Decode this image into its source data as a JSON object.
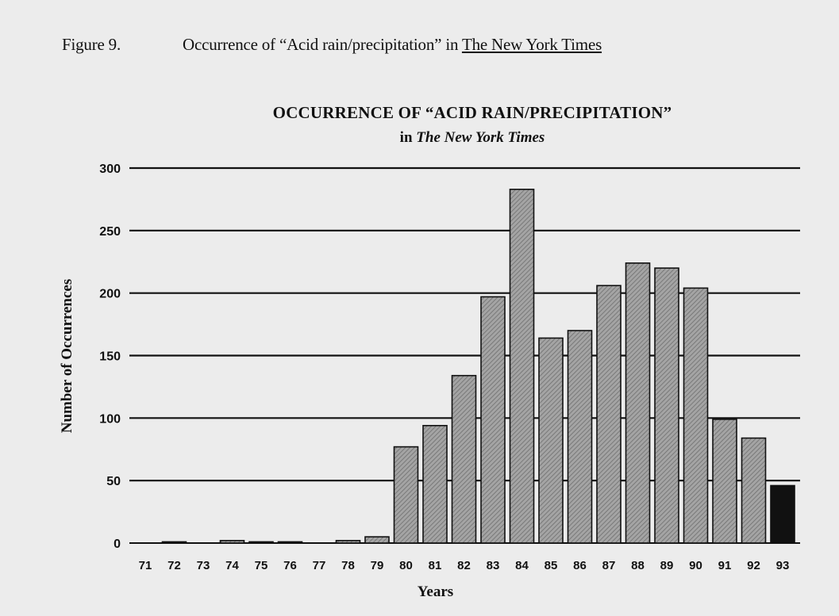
{
  "figure": {
    "number": "Figure 9.",
    "caption_prefix": "Occurrence of “Acid rain/precipitation” in ",
    "caption_source": "The New York Times"
  },
  "chart_data": {
    "type": "bar",
    "title": "OCCURRENCE OF “ACID RAIN/PRECIPITATION”",
    "subtitle_prefix": "in ",
    "subtitle_source": "The New York Times",
    "xlabel": "Years",
    "ylabel": "Number of Occurrences",
    "ylim": [
      0,
      300
    ],
    "yticks": [
      0,
      50,
      100,
      150,
      200,
      250,
      300
    ],
    "grid": true,
    "categories": [
      "71",
      "72",
      "73",
      "74",
      "75",
      "76",
      "77",
      "78",
      "79",
      "80",
      "81",
      "82",
      "83",
      "84",
      "85",
      "86",
      "87",
      "88",
      "89",
      "90",
      "91",
      "92",
      "93"
    ],
    "values": [
      0,
      1,
      0,
      2,
      1,
      1,
      0,
      2,
      5,
      77,
      94,
      134,
      197,
      283,
      164,
      170,
      206,
      224,
      220,
      204,
      99,
      84,
      46
    ],
    "colors": {
      "bar_fill": "#8f8f8f",
      "bar_highlight": "#111111",
      "gridline": "#111111"
    },
    "highlighted_category": "93"
  }
}
